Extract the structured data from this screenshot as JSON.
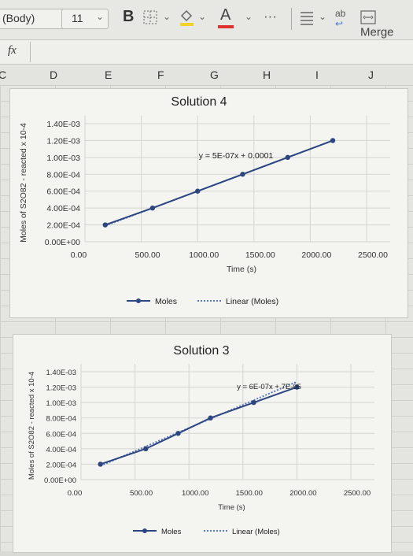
{
  "toolbar": {
    "font_name": "(Body)",
    "font_size": "11",
    "bold_label": "B",
    "font_color_label": "A",
    "more_label": "···",
    "wrap_label": "ab",
    "merge_label": "Merge"
  },
  "formula_bar": {
    "fx_label": "fx"
  },
  "columns": [
    "C",
    "D",
    "E",
    "F",
    "G",
    "H",
    "I",
    "J"
  ],
  "chart_data": [
    {
      "type": "scatter",
      "title": "Solution 4",
      "xlabel": "Time (s)",
      "ylabel": "Moles of S2O82 - reacted x 10-4",
      "x_ticks": [
        "0.00",
        "500.00",
        "1000.00",
        "1500.00",
        "2000.00",
        "2500.00"
      ],
      "y_ticks": [
        "0.00E+00",
        "2.00E-04",
        "4.00E-04",
        "6.00E-04",
        "8.00E-04",
        "1.00E-03",
        "1.20E-03",
        "1.40E-03"
      ],
      "xlim": [
        0,
        2500
      ],
      "ylim": [
        0,
        0.0014
      ],
      "series": [
        {
          "name": "Moles",
          "x": [
            180,
            600,
            1000,
            1400,
            1800,
            2200
          ],
          "y": [
            0.0002,
            0.0004,
            0.0006,
            0.0008,
            0.001,
            0.0012
          ]
        },
        {
          "name": "Linear (Moles)",
          "x": [
            180,
            2200
          ],
          "y": [
            0.00019,
            0.0012
          ]
        }
      ],
      "annotation": "y = 5E-07x + 0.0001",
      "legend": "bottom"
    },
    {
      "type": "scatter",
      "title": "Solution 3",
      "xlabel": "Time (s)",
      "ylabel": "Moles of S2O82 - reacted x 10-4",
      "x_ticks": [
        "0.00",
        "500.00",
        "1000.00",
        "1500.00",
        "2000.00",
        "2500.00"
      ],
      "y_ticks": [
        "0.00E+00",
        "2.00E-04",
        "4.00E-04",
        "6.00E-04",
        "8.00E-04",
        "1.00E-03",
        "1.20E-03",
        "1.40E-03"
      ],
      "xlim": [
        0,
        2500
      ],
      "ylim": [
        0,
        0.0014
      ],
      "series": [
        {
          "name": "Moles",
          "x": [
            180,
            600,
            900,
            1200,
            1600,
            2000
          ],
          "y": [
            0.0002,
            0.0004,
            0.0006,
            0.0008,
            0.001,
            0.0012
          ]
        },
        {
          "name": "Linear (Moles)",
          "x": [
            180,
            2000
          ],
          "y": [
            0.000178,
            0.00127
          ]
        }
      ],
      "annotation": "y = 6E-07x + 7E-05",
      "legend": "bottom"
    }
  ]
}
